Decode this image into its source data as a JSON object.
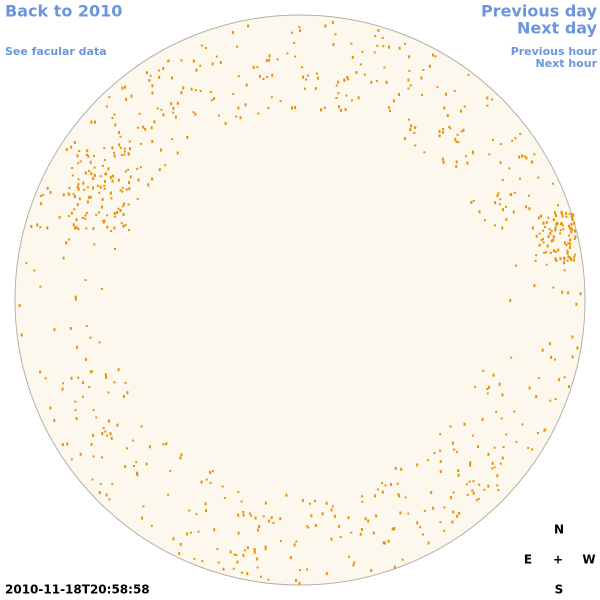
{
  "nav": {
    "back": "Back to 2010",
    "facular": "See facular data",
    "previous_day": "Previous day",
    "next_day": "Next day",
    "previous_hour": "Previous hour",
    "next_hour": "Next hour"
  },
  "timestamp": "2010-11-18T20:58:58",
  "compass": {
    "north": "N",
    "east": "E",
    "center": "+",
    "west": "W",
    "south": "S"
  }
}
